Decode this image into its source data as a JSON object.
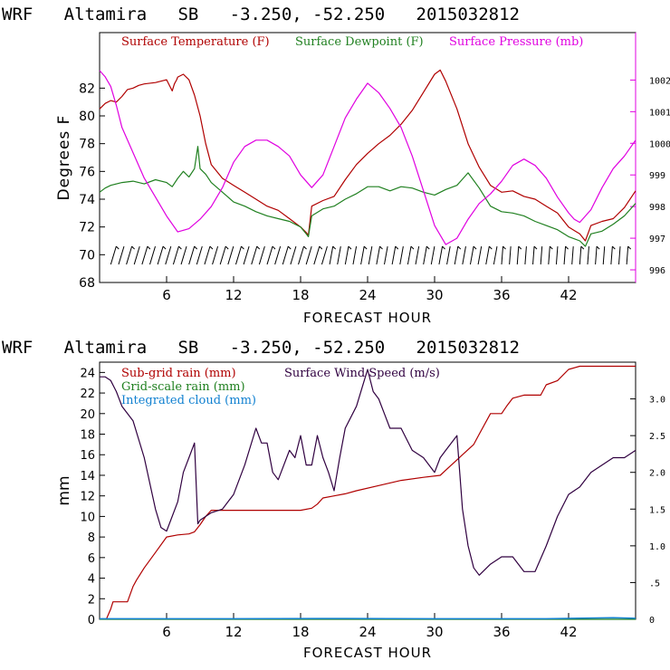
{
  "colors": {
    "temperature": "#b00000",
    "dewpoint": "#208020",
    "pressure": "#e000e0",
    "subgrid_rain": "#b00000",
    "grid_rain": "#208020",
    "cloud": "#1080d0",
    "wind": "#300040",
    "axis": "#000000"
  },
  "chart_data": [
    {
      "type": "line",
      "title": "WRF   Altamira   SB   -3.250, -52.250   2015032812",
      "xlabel": "FORECAST HOUR",
      "ylabel": "Degrees F",
      "x_range": [
        0,
        48
      ],
      "ylim": [
        68,
        86
      ],
      "y2lim": [
        995.6,
        1003.5
      ],
      "x_ticks": [
        6,
        12,
        18,
        24,
        30,
        36,
        42
      ],
      "y_ticks": [
        68,
        70,
        72,
        74,
        76,
        78,
        80,
        82
      ],
      "y2_ticks": [
        996,
        997,
        998,
        999,
        1000,
        1001,
        1002
      ],
      "legend": [
        "Surface Temperature (F)",
        "Surface Dewpoint (F)",
        "Surface Pressure (mb)"
      ],
      "series": [
        {
          "name": "Surface Temperature (F)",
          "axis": "left",
          "x": [
            0,
            0.5,
            1,
            1.5,
            2,
            2.5,
            3,
            3.5,
            4,
            5,
            6,
            6.5,
            6.7,
            6.9,
            7,
            7.5,
            8,
            8.5,
            9,
            9.5,
            10,
            11,
            12,
            13,
            14,
            15,
            16,
            17,
            18,
            18.5,
            18.7,
            19,
            20,
            21,
            22,
            23,
            24,
            25,
            26,
            27,
            28,
            29,
            30,
            30.5,
            31,
            32,
            33,
            34,
            35,
            36,
            37,
            38,
            39,
            40,
            41,
            42,
            43,
            43.5,
            44,
            45,
            46,
            47,
            48
          ],
          "values": [
            80.5,
            80.9,
            81.1,
            81.0,
            81.4,
            81.9,
            82.0,
            82.2,
            82.3,
            82.4,
            82.6,
            81.8,
            82.3,
            82.6,
            82.8,
            83.0,
            82.6,
            81.5,
            80.0,
            78.0,
            76.5,
            75.5,
            75.0,
            74.5,
            74.0,
            73.5,
            73.2,
            72.6,
            72.0,
            71.6,
            71.4,
            73.5,
            73.9,
            74.2,
            75.4,
            76.5,
            77.3,
            78.0,
            78.6,
            79.4,
            80.4,
            81.7,
            83.0,
            83.3,
            82.5,
            80.5,
            78.0,
            76.3,
            75.0,
            74.5,
            74.6,
            74.2,
            74.0,
            73.5,
            73.0,
            72.0,
            71.5,
            71.0,
            72.1,
            72.4,
            72.6,
            73.4,
            74.6
          ]
        },
        {
          "name": "Surface Dewpoint (F)",
          "axis": "left",
          "x": [
            0,
            0.5,
            1,
            2,
            3,
            4,
            5,
            6,
            6.5,
            7,
            7.5,
            8,
            8.5,
            8.8,
            9,
            9.5,
            10,
            11,
            12,
            13,
            14,
            15,
            16,
            17,
            18,
            18.5,
            18.7,
            19,
            20,
            21,
            22,
            23,
            24,
            25,
            26,
            27,
            28,
            29,
            30,
            31,
            32,
            33,
            34,
            35,
            36,
            37,
            38,
            39,
            40,
            41,
            42,
            43,
            43.5,
            44,
            45,
            46,
            47,
            48
          ],
          "values": [
            74.5,
            74.8,
            75.0,
            75.2,
            75.3,
            75.1,
            75.4,
            75.2,
            74.9,
            75.5,
            76.0,
            75.6,
            76.2,
            77.8,
            76.2,
            75.8,
            75.2,
            74.5,
            73.8,
            73.5,
            73.1,
            72.8,
            72.6,
            72.4,
            72.0,
            71.5,
            71.3,
            72.8,
            73.3,
            73.5,
            74.0,
            74.4,
            74.9,
            74.9,
            74.6,
            74.9,
            74.8,
            74.5,
            74.3,
            74.7,
            75.0,
            75.9,
            74.8,
            73.5,
            73.1,
            73.0,
            72.8,
            72.4,
            72.1,
            71.8,
            71.3,
            71.0,
            70.6,
            71.5,
            71.7,
            72.2,
            72.8,
            73.7
          ]
        },
        {
          "name": "Surface Pressure (mb)",
          "axis": "right",
          "x": [
            0,
            0.5,
            1,
            1.5,
            2,
            3,
            4,
            5,
            6,
            7,
            8,
            9,
            10,
            11,
            12,
            13,
            14,
            15,
            16,
            17,
            18,
            19,
            20,
            21,
            22,
            23,
            24,
            25,
            26,
            27,
            28,
            29,
            30,
            31,
            32,
            33,
            34,
            35,
            36,
            37,
            38,
            39,
            40,
            41,
            42,
            42.5,
            43,
            44,
            45,
            46,
            47,
            48
          ],
          "values": [
            1002.3,
            1002.1,
            1001.8,
            1001.2,
            1000.5,
            999.7,
            998.9,
            998.3,
            997.7,
            997.2,
            997.3,
            997.6,
            998.0,
            998.6,
            999.4,
            999.9,
            1000.1,
            1000.1,
            999.9,
            999.6,
            999.0,
            998.6,
            999.0,
            999.9,
            1000.8,
            1001.4,
            1001.9,
            1001.6,
            1001.1,
            1000.5,
            999.6,
            998.5,
            997.4,
            996.8,
            997.0,
            997.6,
            998.1,
            998.4,
            998.8,
            999.3,
            999.5,
            999.3,
            998.9,
            998.3,
            997.8,
            997.6,
            997.5,
            997.9,
            998.6,
            999.2,
            999.6,
            1000.1
          ]
        }
      ],
      "wind_barbs": {
        "name": "Surface Wind Barbs",
        "x_start": 1,
        "x_step": 0.7,
        "count": 67
      }
    },
    {
      "type": "line",
      "title": "WRF   Altamira   SB   -3.250, -52.250   2015032812",
      "xlabel": "FORECAST HOUR",
      "ylabel": "mm",
      "x_range": [
        0,
        48
      ],
      "ylim": [
        0,
        25
      ],
      "y2lim": [
        0,
        3.5
      ],
      "x_ticks": [
        6,
        12,
        18,
        24,
        30,
        36,
        42
      ],
      "y_ticks": [
        0,
        2,
        4,
        6,
        8,
        10,
        12,
        14,
        16,
        18,
        20,
        22,
        24
      ],
      "y2_ticks": [
        0,
        0.5,
        1.0,
        1.5,
        2.0,
        2.5,
        3.0
      ],
      "y2_tick_labels": [
        "0",
        ".5",
        "1.0",
        "1.5",
        "2.0",
        "2.5",
        "3.0"
      ],
      "legend": [
        "Sub-grid rain (mm)",
        "Surface Wind Speed (m/s)",
        "Grid-scale rain (mm)",
        "Integrated cloud (mm)"
      ],
      "series": [
        {
          "name": "Sub-grid rain (mm)",
          "axis": "left",
          "x": [
            0.6,
            1.0,
            1.2,
            1.8,
            2.5,
            3.0,
            3.3,
            4.0,
            5.0,
            6.0,
            7.0,
            8.0,
            8.5,
            9.0,
            9.5,
            10.0,
            11.0,
            12.0,
            15.0,
            18.0,
            19.0,
            19.5,
            20.0,
            21.0,
            22.0,
            23.0,
            25.0,
            27.0,
            29.0,
            30.5,
            31.0,
            32.0,
            33.0,
            33.5,
            34.0,
            35.0,
            36.0,
            36.5,
            37.0,
            38.0,
            39.5,
            40.0,
            41.0,
            42.0,
            43.0,
            44.0,
            45.0,
            46.0,
            47.0,
            48.0
          ],
          "values": [
            0,
            1.0,
            1.7,
            1.7,
            1.7,
            3.2,
            3.8,
            5.0,
            6.5,
            8.0,
            8.2,
            8.3,
            8.5,
            9.2,
            10.0,
            10.6,
            10.6,
            10.6,
            10.6,
            10.6,
            10.8,
            11.2,
            11.8,
            12.0,
            12.2,
            12.5,
            13.0,
            13.5,
            13.8,
            14.0,
            14.5,
            15.5,
            16.5,
            17.0,
            18.0,
            20.0,
            20.0,
            20.8,
            21.5,
            21.8,
            21.8,
            22.8,
            23.2,
            24.3,
            24.6,
            24.6,
            24.6,
            24.6,
            24.6,
            24.6
          ]
        },
        {
          "name": "Grid-scale rain (mm)",
          "axis": "left",
          "x": [
            0,
            48
          ],
          "values": [
            0,
            0
          ]
        },
        {
          "name": "Integrated cloud (mm)",
          "axis": "left",
          "x": [
            0,
            10,
            20,
            30,
            40,
            46,
            48
          ],
          "values": [
            0.05,
            0.05,
            0.08,
            0.05,
            0.05,
            0.15,
            0.1
          ]
        },
        {
          "name": "Surface Wind Speed (m/s)",
          "axis": "right",
          "x": [
            0,
            0.5,
            1,
            1.5,
            2,
            3,
            4,
            5,
            5.5,
            6,
            7,
            7.5,
            8,
            8.5,
            8.8,
            9,
            9.5,
            10,
            11,
            12,
            13,
            14,
            14.5,
            15,
            15.5,
            16,
            17,
            17.5,
            18,
            18.5,
            19,
            19.5,
            20,
            20.5,
            21,
            21.5,
            22,
            23,
            24,
            24.5,
            25,
            25.5,
            26,
            27,
            28,
            29,
            30,
            30.5,
            31,
            31.5,
            32,
            32.5,
            33,
            33.5,
            34,
            35,
            36,
            37,
            38,
            39,
            40,
            41,
            42,
            43,
            44,
            45,
            46,
            47,
            48
          ],
          "values": [
            3.3,
            3.3,
            3.25,
            3.1,
            2.9,
            2.7,
            2.2,
            1.5,
            1.25,
            1.2,
            1.6,
            2.0,
            2.2,
            2.4,
            1.3,
            1.35,
            1.4,
            1.45,
            1.5,
            1.7,
            2.1,
            2.6,
            2.4,
            2.4,
            2.0,
            1.9,
            2.3,
            2.2,
            2.5,
            2.1,
            2.1,
            2.5,
            2.2,
            2.0,
            1.75,
            2.2,
            2.6,
            2.9,
            3.4,
            3.1,
            3.0,
            2.8,
            2.6,
            2.6,
            2.3,
            2.2,
            2.0,
            2.2,
            2.3,
            2.4,
            2.5,
            1.5,
            1.0,
            0.7,
            0.6,
            0.75,
            0.85,
            0.85,
            0.65,
            0.65,
            1.0,
            1.4,
            1.7,
            1.8,
            2.0,
            2.1,
            2.2,
            2.2,
            2.3
          ]
        }
      ]
    }
  ]
}
